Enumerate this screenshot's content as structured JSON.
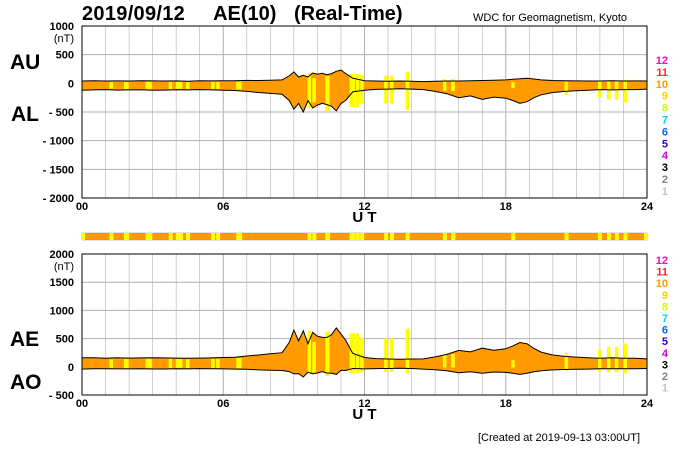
{
  "header": {
    "date": "2019/09/12",
    "title": "AE(10) (Real-Time)",
    "source": "WDC for Geomagnetism, Kyoto"
  },
  "footer": {
    "created": "[Created at 2019-09-13 03:00UT]"
  },
  "colors": {
    "fill": "#ff9a00",
    "highlight": "#ffff00",
    "grid": "#b0b0b0",
    "line": "#000000"
  },
  "chart_data": [
    {
      "type": "area",
      "title": "AU / AL",
      "labels": [
        "AU",
        "AL"
      ],
      "xlabel": "U T",
      "ylabel_unit": "(nT)",
      "xlim": [
        0,
        24
      ],
      "ylim": [
        -2000,
        1000
      ],
      "xticks": [
        "00",
        "06",
        "12",
        "18",
        "24"
      ],
      "yticks": [
        "1000",
        "500",
        "0",
        "- 500",
        "- 1000",
        "- 1500",
        "- 2000"
      ],
      "x": [
        0,
        0.5,
        1,
        1.5,
        2,
        2.5,
        3,
        3.5,
        4,
        4.5,
        5,
        5.5,
        6,
        6.5,
        7,
        7.5,
        8,
        8.5,
        8.8,
        9,
        9.2,
        9.4,
        9.6,
        9.8,
        10,
        10.2,
        10.4,
        10.6,
        10.8,
        11,
        11.2,
        11.5,
        12,
        12.5,
        13,
        13.5,
        14,
        14.5,
        15,
        15.5,
        16,
        16.5,
        17,
        17.5,
        18,
        18.3,
        18.6,
        18.9,
        19.2,
        19.5,
        20,
        20.5,
        21,
        21.5,
        22,
        22.5,
        23,
        23.5,
        24
      ],
      "series": [
        {
          "name": "AU",
          "values": [
            40,
            45,
            40,
            42,
            40,
            45,
            42,
            40,
            42,
            38,
            45,
            42,
            45,
            45,
            52,
            50,
            55,
            60,
            130,
            200,
            110,
            140,
            110,
            180,
            160,
            175,
            150,
            170,
            210,
            230,
            170,
            90,
            45,
            40,
            38,
            40,
            38,
            30,
            35,
            40,
            40,
            45,
            50,
            55,
            60,
            70,
            80,
            90,
            75,
            60,
            50,
            45,
            42,
            40,
            40,
            45,
            40,
            42,
            40
          ]
        },
        {
          "name": "AL",
          "values": [
            -120,
            -115,
            -110,
            -118,
            -115,
            -112,
            -120,
            -118,
            -112,
            -115,
            -110,
            -115,
            -120,
            -125,
            -140,
            -160,
            -175,
            -190,
            -300,
            -450,
            -350,
            -500,
            -300,
            -430,
            -380,
            -350,
            -370,
            -400,
            -480,
            -350,
            -300,
            -150,
            -120,
            -105,
            -100,
            -95,
            -100,
            -110,
            -140,
            -180,
            -250,
            -220,
            -280,
            -240,
            -260,
            -300,
            -350,
            -320,
            -250,
            -200,
            -160,
            -140,
            -130,
            -120,
            -110,
            -115,
            -110,
            -110,
            -100
          ]
        }
      ],
      "qualifier_labels": [
        "12",
        "11",
        "10",
        "9",
        "8",
        "7",
        "6",
        "5",
        "4",
        "3",
        "2",
        "1"
      ],
      "qualifier_colors": [
        "#ff00cc",
        "#ff2020",
        "#ff9900",
        "#ffcc00",
        "#ccff00",
        "#00ccff",
        "#0066ff",
        "#3300cc",
        "#cc00cc",
        "#000000",
        "#808080",
        "#c0c0c0"
      ]
    },
    {
      "type": "area",
      "title": "AE / AO",
      "labels": [
        "AE",
        "AO"
      ],
      "xlabel": "U T",
      "ylabel_unit": "(nT)",
      "xlim": [
        0,
        24
      ],
      "ylim": [
        -500,
        2000
      ],
      "xticks": [
        "00",
        "06",
        "12",
        "18",
        "24"
      ],
      "yticks": [
        "2000",
        "1500",
        "1000",
        "500",
        "0",
        "- 500"
      ],
      "x": [
        0,
        0.5,
        1,
        1.5,
        2,
        2.5,
        3,
        3.5,
        4,
        4.5,
        5,
        5.5,
        6,
        6.5,
        7,
        7.5,
        8,
        8.5,
        8.8,
        9,
        9.2,
        9.4,
        9.6,
        9.8,
        10,
        10.2,
        10.4,
        10.6,
        10.8,
        11,
        11.2,
        11.5,
        12,
        12.5,
        13,
        13.5,
        14,
        14.5,
        15,
        15.5,
        16,
        16.5,
        17,
        17.5,
        18,
        18.3,
        18.6,
        18.9,
        19.2,
        19.5,
        20,
        20.5,
        21,
        21.5,
        22,
        22.5,
        23,
        23.5,
        24
      ],
      "series": [
        {
          "name": "AE",
          "values": [
            160,
            160,
            150,
            160,
            155,
            157,
            162,
            158,
            154,
            153,
            155,
            157,
            165,
            170,
            192,
            210,
            230,
            250,
            430,
            650,
            460,
            640,
            410,
            610,
            540,
            525,
            520,
            570,
            690,
            580,
            470,
            240,
            165,
            145,
            138,
            135,
            138,
            140,
            175,
            220,
            290,
            265,
            330,
            295,
            320,
            370,
            430,
            410,
            325,
            260,
            210,
            185,
            172,
            160,
            150,
            160,
            150,
            152,
            140
          ]
        },
        {
          "name": "AO",
          "values": [
            -40,
            -35,
            -35,
            -38,
            -37,
            -33,
            -39,
            -39,
            -35,
            -38,
            -32,
            -36,
            -37,
            -40,
            -44,
            -55,
            -60,
            -65,
            -85,
            -125,
            -120,
            -180,
            -95,
            -125,
            -110,
            -87,
            -110,
            -115,
            -135,
            -60,
            -65,
            -30,
            -37,
            -32,
            -31,
            -27,
            -31,
            -40,
            -52,
            -70,
            -105,
            -87,
            -115,
            -92,
            -100,
            -115,
            -135,
            -115,
            -87,
            -70,
            -55,
            -47,
            -44,
            -40,
            -35,
            -35,
            -35,
            -34,
            -30
          ]
        }
      ],
      "qualifier_labels": [
        "12",
        "11",
        "10",
        "9",
        "8",
        "7",
        "6",
        "5",
        "4",
        "3",
        "2",
        "1"
      ],
      "qualifier_colors": [
        "#ff00cc",
        "#ff2020",
        "#ff9900",
        "#ffcc00",
        "#ccff00",
        "#00ccff",
        "#0066ff",
        "#3300cc",
        "#cc00cc",
        "#000000",
        "#808080",
        "#c0c0c0"
      ]
    }
  ]
}
